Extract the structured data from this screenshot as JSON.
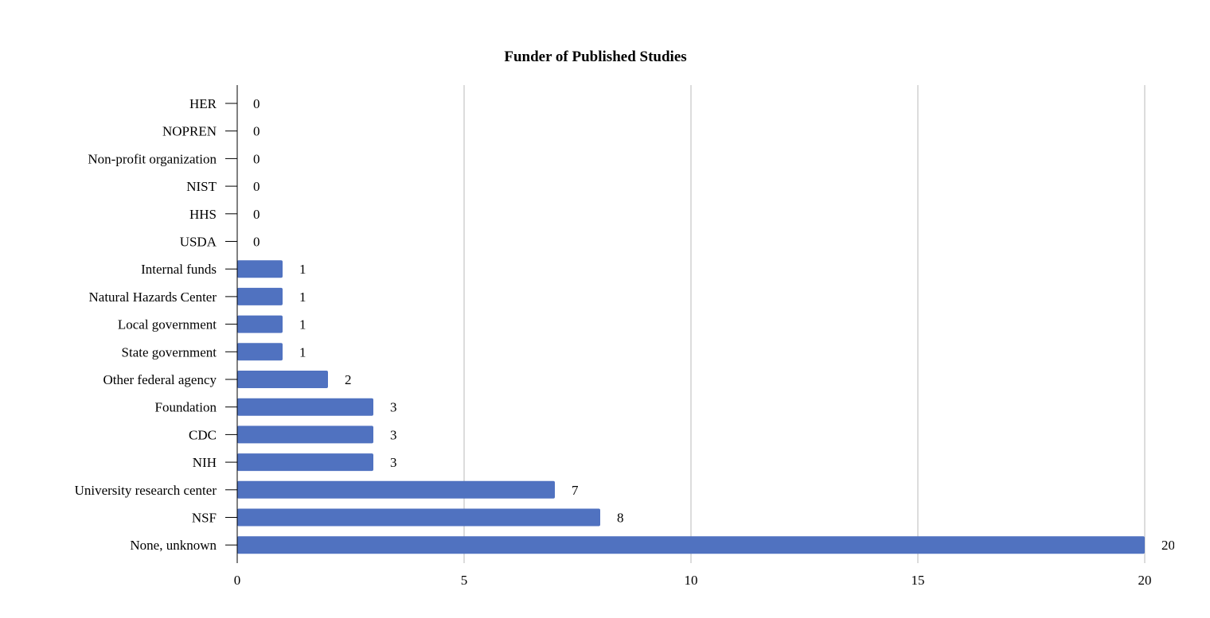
{
  "chart_data": {
    "type": "bar",
    "orientation": "horizontal",
    "title": "Funder of Published Studies",
    "xlabel": "",
    "ylabel": "",
    "xlim": [
      0,
      20
    ],
    "x_ticks": [
      0,
      5,
      10,
      15,
      20
    ],
    "grid": "vertical",
    "bar_color": "#5072c0",
    "categories": [
      "HER",
      "NOPREN",
      "Non-profit organization",
      "NIST",
      "HHS",
      "USDA",
      "Internal funds",
      "Natural Hazards Center",
      "Local government",
      "State government",
      "Other federal agency",
      "Foundation",
      "CDC",
      "NIH",
      "University research center",
      "NSF",
      "None, unknown"
    ],
    "values": [
      0,
      0,
      0,
      0,
      0,
      0,
      1,
      1,
      1,
      1,
      2,
      3,
      3,
      3,
      7,
      8,
      20
    ]
  }
}
